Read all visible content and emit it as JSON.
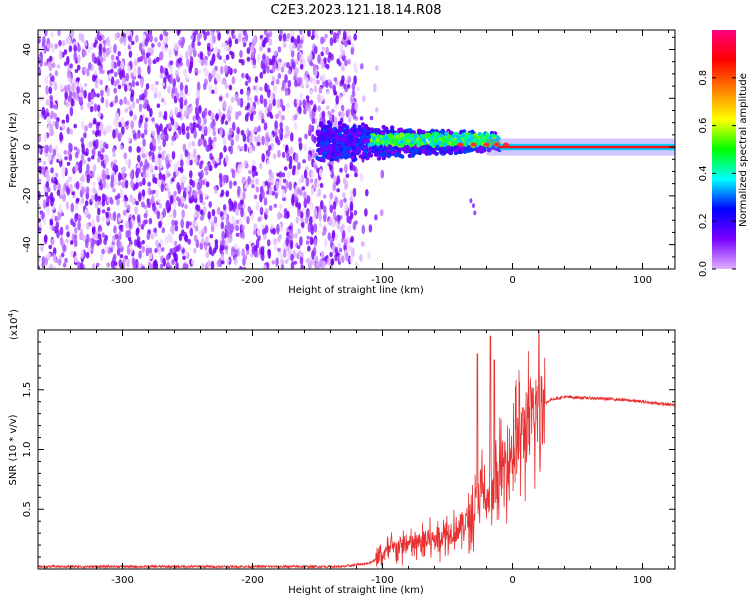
{
  "title": "C2E3.2023.121.18.14.R08",
  "chart_data": [
    {
      "type": "heatmap",
      "title": "C2E3.2023.121.18.14.R08",
      "xlabel": "Height of straight line (km)",
      "ylabel": "Frequency (Hz)",
      "xlim": [
        -365,
        125
      ],
      "ylim": [
        -50,
        48
      ],
      "xticks": [
        -300,
        -200,
        -100,
        0,
        100
      ],
      "yticks": [
        -40,
        -20,
        0,
        20,
        40
      ],
      "xtick_labels": [
        "-300",
        "-200",
        "-100",
        "0",
        "100"
      ],
      "ytick_labels": [
        "-40",
        "-20",
        "0",
        "20",
        "40"
      ],
      "colorbar": {
        "label": "Normalized spectral amplitude",
        "range": [
          0,
          1
        ],
        "ticks": [
          0.0,
          0.2,
          0.4,
          0.6,
          0.8
        ],
        "tick_labels": [
          "0.0",
          "0.2",
          "0.4",
          "0.6",
          "0.8"
        ],
        "colormap": [
          "#e0b0ff",
          "#7a00ff",
          "#0000ff",
          "#00ffff",
          "#00ff00",
          "#ffff00",
          "#ff8000",
          "#ff0000",
          "#ff0080"
        ]
      },
      "regions": [
        {
          "name": "noise",
          "x": [
            -365,
            -120
          ],
          "freq": [
            -50,
            48
          ],
          "amplitude": 0.05
        },
        {
          "name": "transition",
          "x": [
            -150,
            -10
          ],
          "freq_center": 3,
          "freq_spread": 8,
          "amplitude": 0.35
        },
        {
          "name": "carrier",
          "x": [
            -10,
            125
          ],
          "freq_center": 0,
          "freq_spread": 1,
          "amplitude": 0.8
        }
      ]
    },
    {
      "type": "line",
      "xlabel": "Height of straight line (km)",
      "ylabel": "SNR (10 * v/v)",
      "y_multiplier": "(x10",
      "y_multiplier_exp": "4",
      "y_multiplier_close": ")",
      "xlim": [
        -365,
        125
      ],
      "ylim": [
        0,
        2.0
      ],
      "xticks": [
        -300,
        -200,
        -100,
        0,
        100
      ],
      "yticks": [
        0.5,
        1.0,
        1.5
      ],
      "xtick_labels": [
        "-300",
        "-200",
        "-100",
        "0",
        "100"
      ],
      "ytick_labels": [
        "0.5",
        "1.0",
        "1.5"
      ],
      "color": "#e83030",
      "series": [
        {
          "name": "SNR",
          "x": [
            -365,
            -300,
            -200,
            -130,
            -110,
            -100,
            -90,
            -80,
            -70,
            -60,
            -50,
            -40,
            -30,
            -25,
            -20,
            -15,
            -10,
            -5,
            0,
            10,
            20,
            30,
            40,
            60,
            80,
            100,
            125
          ],
          "y": [
            0.02,
            0.02,
            0.02,
            0.02,
            0.05,
            0.12,
            0.18,
            0.2,
            0.22,
            0.25,
            0.3,
            0.35,
            0.45,
            0.7,
            0.55,
            0.6,
            0.8,
            0.9,
            1.0,
            1.15,
            1.35,
            1.42,
            1.44,
            1.43,
            1.42,
            1.4,
            1.37
          ]
        }
      ],
      "spikes": [
        {
          "x": -27,
          "y": 1.8
        },
        {
          "x": -17,
          "y": 1.95
        },
        {
          "x": -14,
          "y": 1.75
        },
        {
          "x": 8,
          "y": 1.35
        },
        {
          "x": 24,
          "y": 1.5
        }
      ]
    }
  ]
}
